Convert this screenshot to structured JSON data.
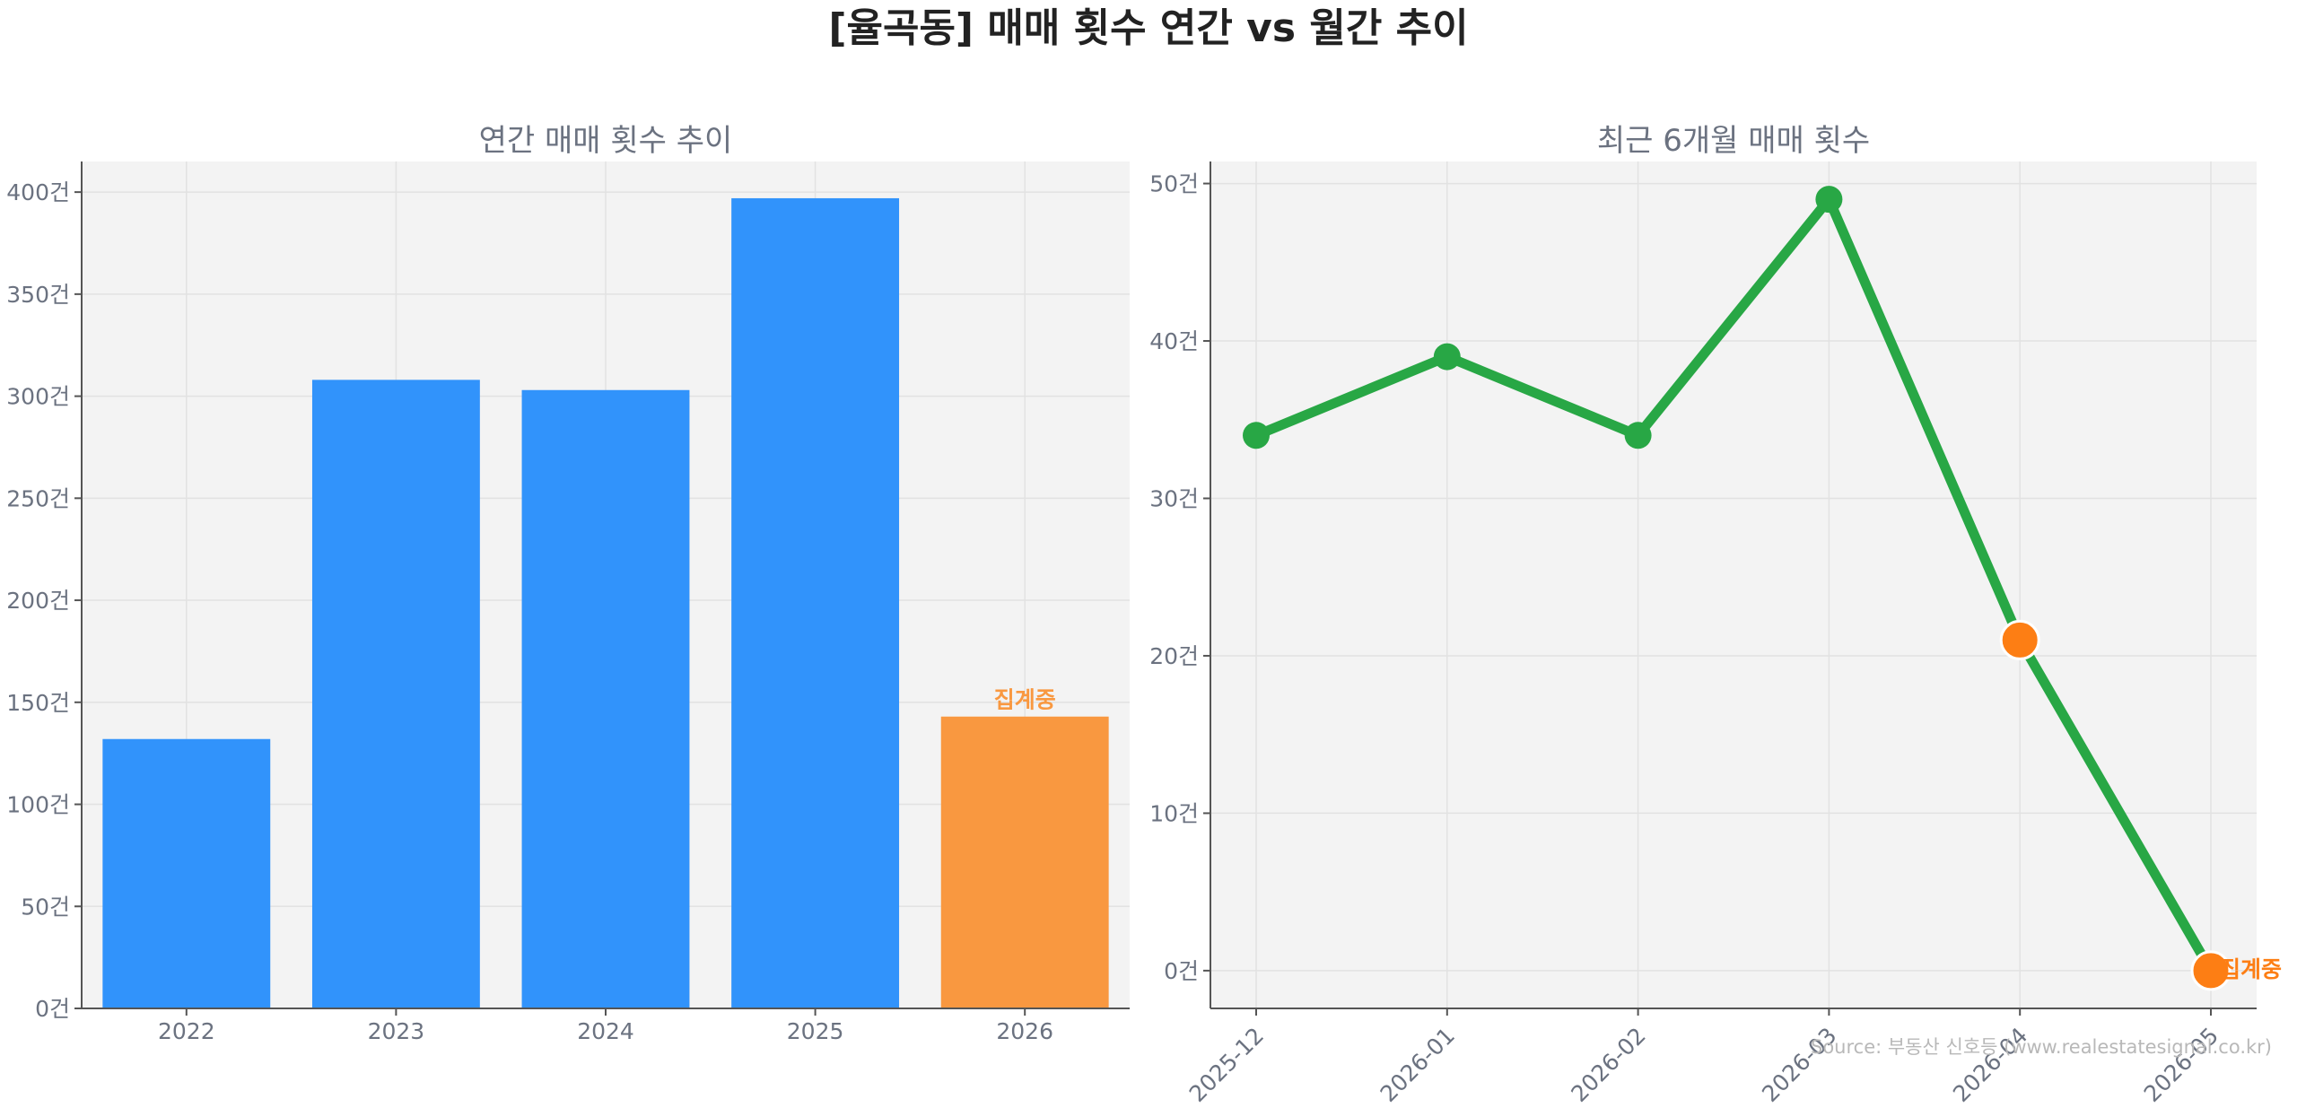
{
  "figure": {
    "title": "[율곡동] 매매 횟수 연간 vs 월간 추이",
    "source": "Source: 부동산 신호등 (www.realestatesignal.co.kr)"
  },
  "chart_data": [
    {
      "type": "bar",
      "title": "연간 매매 횟수 추이",
      "categories": [
        "2022",
        "2023",
        "2024",
        "2025",
        "2026"
      ],
      "values": [
        132,
        308,
        303,
        397,
        143
      ],
      "ylim": [
        0,
        415
      ],
      "yticks": [
        0,
        50,
        100,
        150,
        200,
        250,
        300,
        350,
        400
      ],
      "tick_suffix": "건",
      "bar_color": "#3193fb",
      "highlight_index": 4,
      "highlight_color": "#f99840",
      "highlight_label": "집계중",
      "grid": true
    },
    {
      "type": "line",
      "title": "최근 6개월 매매 횟수",
      "x": [
        "2025-12",
        "2026-01",
        "2026-02",
        "2026-03",
        "2026-04",
        "2026-05"
      ],
      "values": [
        34,
        39,
        34,
        49,
        21,
        0
      ],
      "ylim": [
        -2.4,
        51.4
      ],
      "yticks": [
        0,
        10,
        20,
        30,
        40,
        50
      ],
      "tick_suffix": "건",
      "line_color": "#28a745",
      "highlight_indices": [
        4,
        5
      ],
      "highlight_color": "#fd7e14",
      "highlight_label": "집계중",
      "grid": true
    }
  ]
}
